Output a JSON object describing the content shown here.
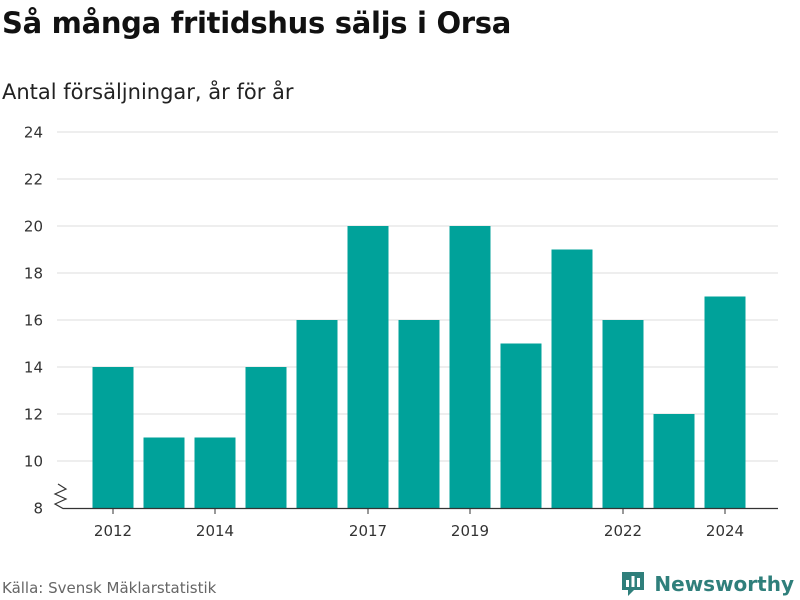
{
  "header": {
    "title": "Så många fritidshus säljs i Orsa",
    "subtitle": "Antal försäljningar, år för år"
  },
  "footer": {
    "source": "Källa: Svensk Mäklarstatistik",
    "brand": "Newsworthy",
    "brand_icon": "newsworthy-logo-icon"
  },
  "colors": {
    "bar": "#00a29a",
    "grid": "#dddddd",
    "axis": "#333333",
    "brand": "#2f7f7b"
  },
  "chart_data": {
    "type": "bar",
    "categories": [
      "2012",
      "2013",
      "2014",
      "2015",
      "2016",
      "2017",
      "2018",
      "2019",
      "2020",
      "2021",
      "2022",
      "2023",
      "2024"
    ],
    "values": [
      14,
      11,
      11,
      14,
      16,
      20,
      16,
      20,
      15,
      19,
      16,
      12,
      17
    ],
    "x_tick_labels": [
      "2012",
      "2014",
      "2017",
      "2019",
      "2022",
      "2024"
    ],
    "y_ticks": [
      8,
      10,
      12,
      14,
      16,
      18,
      20,
      22,
      24
    ],
    "ylim": [
      8,
      24
    ],
    "y_axis_break": true,
    "grid": true,
    "xlabel": "",
    "ylabel": ""
  }
}
